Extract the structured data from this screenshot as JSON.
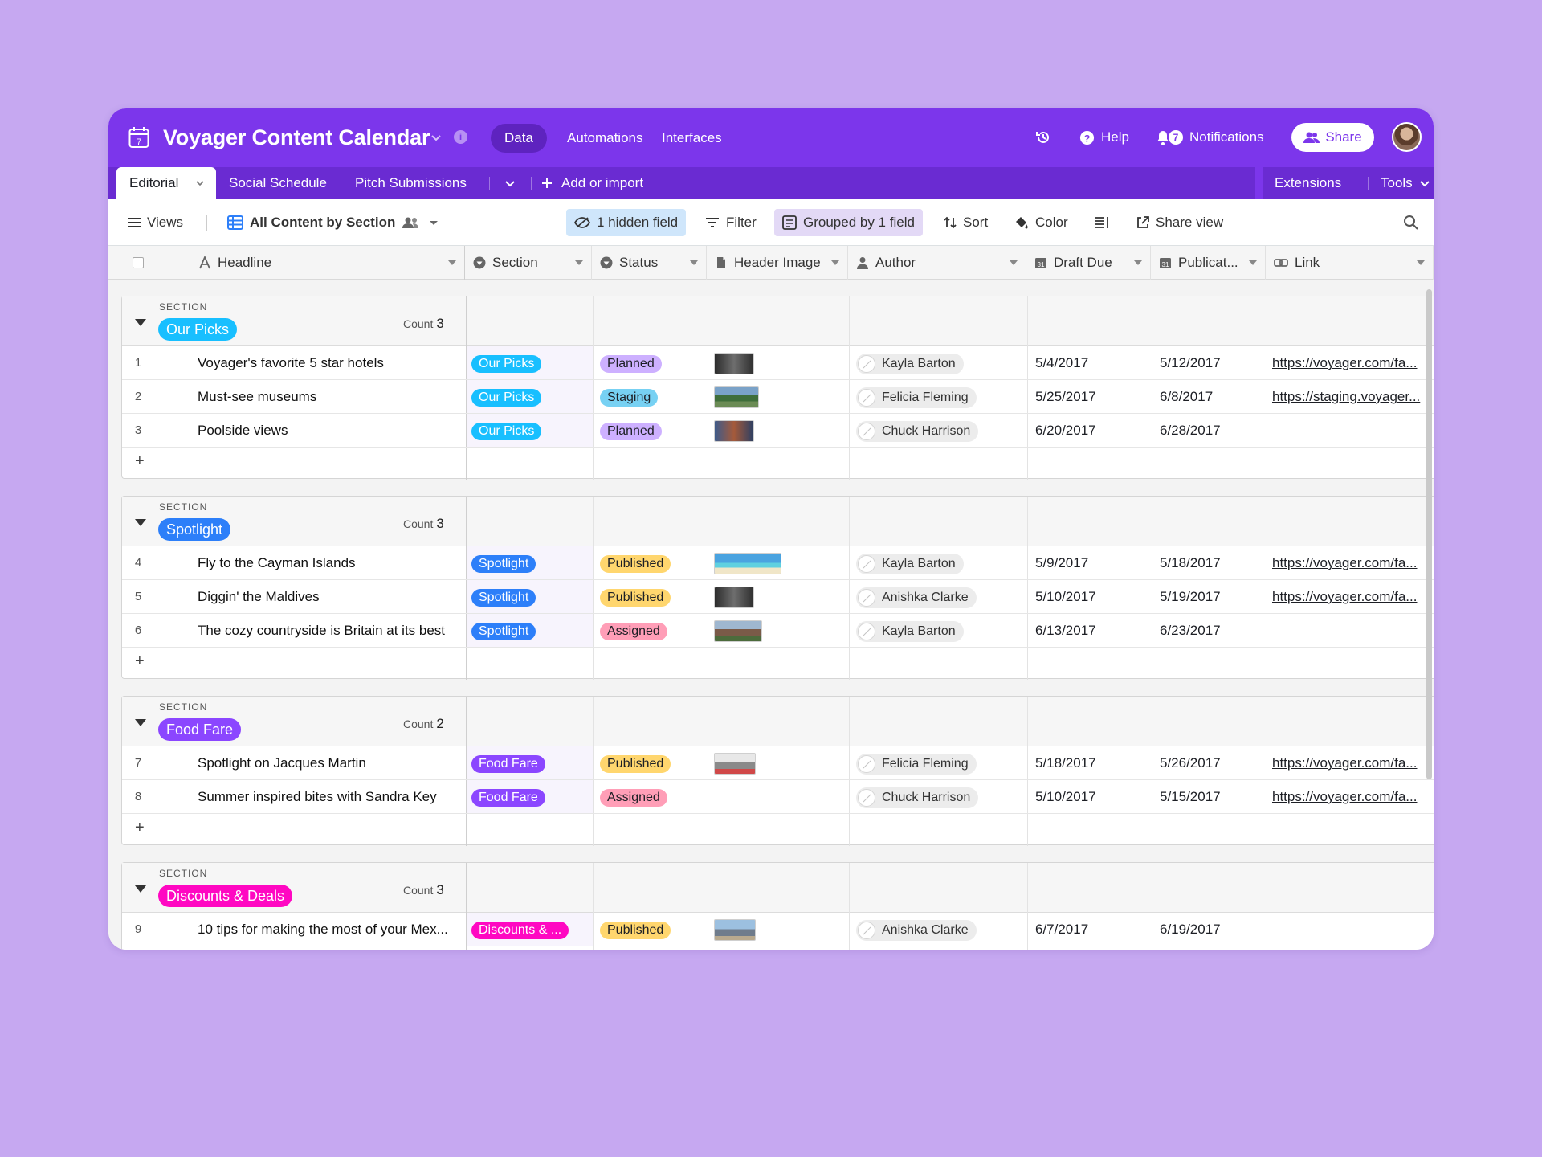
{
  "base": {
    "title": "Voyager Content Calendar",
    "icon_date": "7",
    "nav_tabs": [
      "Data",
      "Automations",
      "Interfaces"
    ],
    "help_label": "Help",
    "notifications_label": "Notifications",
    "notifications_count": "7",
    "share_label": "Share",
    "accent_color": "#7c36eb"
  },
  "tables": {
    "tabs": [
      "Editorial",
      "Social Schedule",
      "Pitch Submissions"
    ],
    "add_label": "Add or import",
    "extensions_label": "Extensions",
    "tools_label": "Tools"
  },
  "viewbar": {
    "views_label": "Views",
    "view_name": "All Content by Section",
    "hidden_fields": "1 hidden field",
    "filter": "Filter",
    "grouped": "Grouped by 1 field",
    "sort": "Sort",
    "color": "Color",
    "share_view": "Share view"
  },
  "columns": [
    "Headline",
    "Section",
    "Status",
    "Header Image",
    "Author",
    "Draft Due",
    "Publicat...",
    "Link"
  ],
  "groups": [
    {
      "label": "SECTION",
      "name": "Our Picks",
      "color": "#18bfff",
      "count_label": "Count",
      "count": "3",
      "rows": [
        {
          "n": "1",
          "headline": "Voyager's favorite 5 star hotels",
          "section": "Our Picks",
          "status": "Planned",
          "img": "dark",
          "author": "Kayla Barton",
          "draft": "5/4/2017",
          "pub": "5/12/2017",
          "link": "https://voyager.com/fa..."
        },
        {
          "n": "2",
          "headline": "Must-see museums",
          "section": "Our Picks",
          "status": "Staging",
          "img": "green",
          "author": "Felicia Fleming",
          "draft": "5/25/2017",
          "pub": "6/8/2017",
          "link": "https://staging.voyager..."
        },
        {
          "n": "3",
          "headline": "Poolside views",
          "section": "Our Picks",
          "status": "Planned",
          "img": "blue",
          "author": "Chuck Harrison",
          "draft": "6/20/2017",
          "pub": "6/28/2017",
          "link": ""
        }
      ]
    },
    {
      "label": "SECTION",
      "name": "Spotlight",
      "color": "#2d7ff9",
      "count_label": "Count",
      "count": "3",
      "rows": [
        {
          "n": "4",
          "headline": "Fly to the Cayman Islands",
          "section": "Spotlight",
          "status": "Published",
          "img": "beach",
          "author": "Kayla Barton",
          "draft": "5/9/2017",
          "pub": "5/18/2017",
          "link": "https://voyager.com/fa..."
        },
        {
          "n": "5",
          "headline": "Diggin' the Maldives",
          "section": "Spotlight",
          "status": "Published",
          "img": "dark",
          "author": "Anishka Clarke",
          "draft": "5/10/2017",
          "pub": "5/19/2017",
          "link": "https://voyager.com/fa..."
        },
        {
          "n": "6",
          "headline": "The cozy countryside is Britain at its best",
          "section": "Spotlight",
          "status": "Assigned",
          "img": "town",
          "author": "Kayla Barton",
          "draft": "6/13/2017",
          "pub": "6/23/2017",
          "link": ""
        }
      ]
    },
    {
      "label": "SECTION",
      "name": "Food Fare",
      "color": "#8b46ff",
      "count_label": "Count",
      "count": "2",
      "rows": [
        {
          "n": "7",
          "headline": "Spotlight on Jacques Martin",
          "section": "Food Fare",
          "status": "Published",
          "img": "shop",
          "author": "Felicia Fleming",
          "draft": "5/18/2017",
          "pub": "5/26/2017",
          "link": "https://voyager.com/fa..."
        },
        {
          "n": "8",
          "headline": "Summer inspired bites with Sandra Key",
          "section": "Food Fare",
          "status": "Assigned",
          "img": "",
          "author": "Chuck Harrison",
          "draft": "5/10/2017",
          "pub": "5/15/2017",
          "link": "https://voyager.com/fa..."
        }
      ]
    },
    {
      "label": "SECTION",
      "name": "Discounts & Deals",
      "color": "#ff08c2",
      "count_label": "Count",
      "count": "3",
      "rows": [
        {
          "n": "9",
          "headline": "10 tips for making the most of your Mex...",
          "section": "Discounts & ...",
          "status": "Published",
          "img": "city",
          "author": "Anishka Clarke",
          "draft": "6/7/2017",
          "pub": "6/19/2017",
          "link": ""
        }
      ]
    }
  ],
  "status_colors": {
    "Planned": {
      "bg": "#cdb0ff",
      "fg": "#1d1f25"
    },
    "Staging": {
      "bg": "#77d1f3",
      "fg": "#1d1f25"
    },
    "Published": {
      "bg": "#ffd66e",
      "fg": "#1d1f25"
    },
    "Assigned": {
      "bg": "#ff9eb7",
      "fg": "#1d1f25"
    }
  }
}
